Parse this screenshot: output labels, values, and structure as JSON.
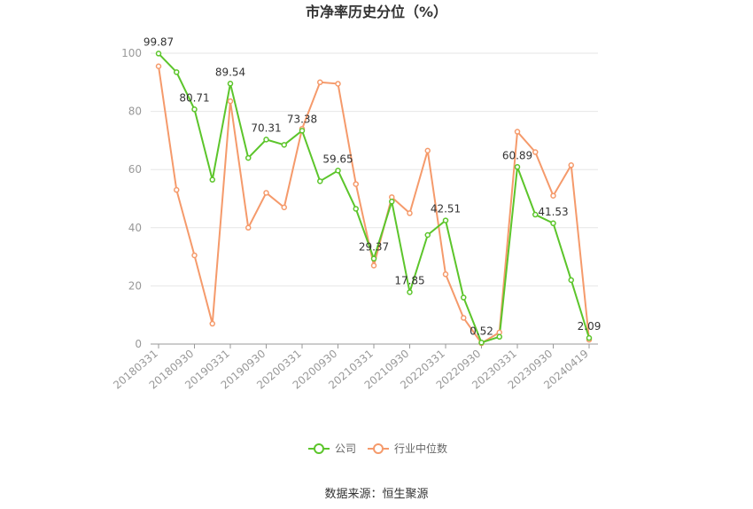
{
  "chart_data": {
    "type": "line",
    "title": "市净率历史分位（%）",
    "ylim": [
      0,
      100
    ],
    "yticks": [
      0,
      20,
      40,
      60,
      80,
      100
    ],
    "x": [
      "20180331",
      "20180630",
      "20180930",
      "20181231",
      "20190331",
      "20190630",
      "20190930",
      "20191231",
      "20200331",
      "20200630",
      "20200930",
      "20201231",
      "20210331",
      "20210630",
      "20210930",
      "20211231",
      "20220331",
      "20220630",
      "20220930",
      "20221231",
      "20230331",
      "20230630",
      "20230930",
      "20231231",
      "20240419"
    ],
    "xtick_labels": [
      "20180331",
      "20180930",
      "20190331",
      "20190930",
      "20200331",
      "20200930",
      "20210331",
      "20210930",
      "20220331",
      "20220930",
      "20230331",
      "20230930",
      "20240419"
    ],
    "xtick_indices": [
      0,
      2,
      4,
      6,
      8,
      10,
      12,
      14,
      16,
      18,
      20,
      22,
      24
    ],
    "series": [
      {
        "name": "公司",
        "color": "#5cc52b",
        "values": [
          99.87,
          93.5,
          80.71,
          56.5,
          89.54,
          64.0,
          70.31,
          68.5,
          73.38,
          56.0,
          59.65,
          46.5,
          29.37,
          49.0,
          17.85,
          37.5,
          42.51,
          16.0,
          0.52,
          2.5,
          60.89,
          44.5,
          41.53,
          22.0,
          2.09
        ]
      },
      {
        "name": "行业中位数",
        "color": "#f59a6b",
        "values": [
          95.5,
          53.0,
          30.5,
          7.0,
          83.5,
          40.0,
          52.0,
          47.0,
          74.0,
          90.0,
          89.5,
          55.0,
          27.0,
          50.5,
          45.0,
          66.5,
          24.0,
          9.0,
          0.3,
          4.0,
          73.0,
          66.0,
          51.0,
          61.5,
          1.5
        ]
      }
    ],
    "data_labels": [
      {
        "index": 0,
        "text": "99.87"
      },
      {
        "index": 2,
        "text": "80.71"
      },
      {
        "index": 4,
        "text": "89.54"
      },
      {
        "index": 6,
        "text": "70.31"
      },
      {
        "index": 8,
        "text": "73.38"
      },
      {
        "index": 10,
        "text": "59.65"
      },
      {
        "index": 12,
        "text": "29.37"
      },
      {
        "index": 14,
        "text": "17.85"
      },
      {
        "index": 16,
        "text": "42.51"
      },
      {
        "index": 18,
        "text": "0.52"
      },
      {
        "index": 20,
        "text": "60.89"
      },
      {
        "index": 22,
        "text": "41.53"
      },
      {
        "index": 24,
        "text": "2.09"
      }
    ],
    "legend_placement": "bottom-center",
    "grid": true
  },
  "source_text": "数据来源：恒生聚源"
}
